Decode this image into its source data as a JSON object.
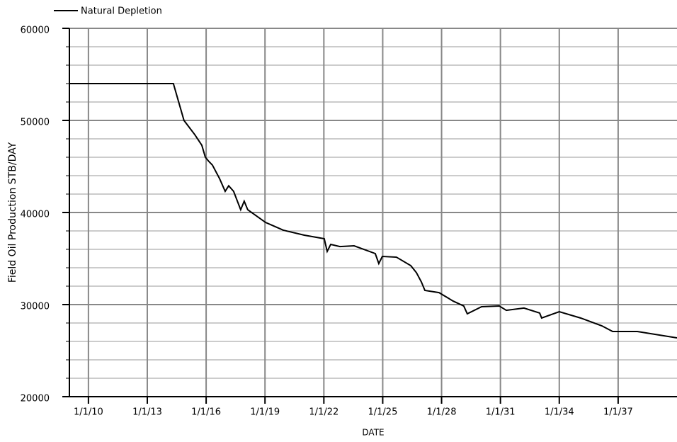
{
  "chart_data": {
    "type": "line",
    "xlabel": "DATE",
    "ylabel": "Field Oil Production  STB/DAY",
    "series": [
      {
        "name": "Natural Depletion",
        "color": "#000000",
        "x": [
          9.03,
          14.33,
          14.87,
          15.42,
          15.78,
          15.96,
          16.14,
          16.32,
          16.68,
          16.97,
          17.15,
          17.4,
          17.76,
          17.94,
          18.12,
          19.03,
          19.93,
          21.0,
          22.02,
          22.17,
          22.35,
          22.82,
          23.54,
          24.62,
          24.8,
          24.98,
          25.7,
          26.43,
          26.72,
          26.97,
          27.15,
          27.87,
          28.59,
          29.13,
          29.31,
          30.04,
          30.94,
          31.3,
          32.2,
          33.0,
          33.1,
          34.0,
          35.09,
          36.17,
          36.72,
          37.98,
          40.0
        ],
        "values": [
          54000,
          54000,
          50000,
          48460,
          47300,
          46000,
          45540,
          45150,
          43700,
          42300,
          42900,
          42300,
          40300,
          41230,
          40300,
          38920,
          38080,
          37540,
          37150,
          35770,
          36540,
          36300,
          36380,
          35540,
          34460,
          35230,
          35150,
          34230,
          33460,
          32460,
          31540,
          31300,
          30380,
          29850,
          29000,
          29770,
          29850,
          29380,
          29620,
          29080,
          28540,
          29230,
          28540,
          27690,
          27080,
          27080,
          26380
        ]
      }
    ],
    "xlim": [
      9.03,
      40.0
    ],
    "xticks": [
      {
        "value": 10,
        "label": "1/1/10"
      },
      {
        "value": 13,
        "label": "1/1/13"
      },
      {
        "value": 16,
        "label": "1/1/16"
      },
      {
        "value": 19,
        "label": "1/1/19"
      },
      {
        "value": 22,
        "label": "1/1/22"
      },
      {
        "value": 25,
        "label": "1/1/25"
      },
      {
        "value": 28,
        "label": "1/1/28"
      },
      {
        "value": 31,
        "label": "1/1/31"
      },
      {
        "value": 34,
        "label": "1/1/34"
      },
      {
        "value": 37,
        "label": "1/1/37"
      }
    ],
    "ylim": [
      20000,
      60000
    ],
    "yticks": [
      20000,
      30000,
      40000,
      50000,
      60000
    ],
    "y_minor_ticks": [
      22000,
      24000,
      26000,
      28000,
      32000,
      34000,
      36000,
      38000,
      42000,
      44000,
      46000,
      48000,
      52000,
      54000,
      56000,
      58000
    ],
    "grid": true
  }
}
